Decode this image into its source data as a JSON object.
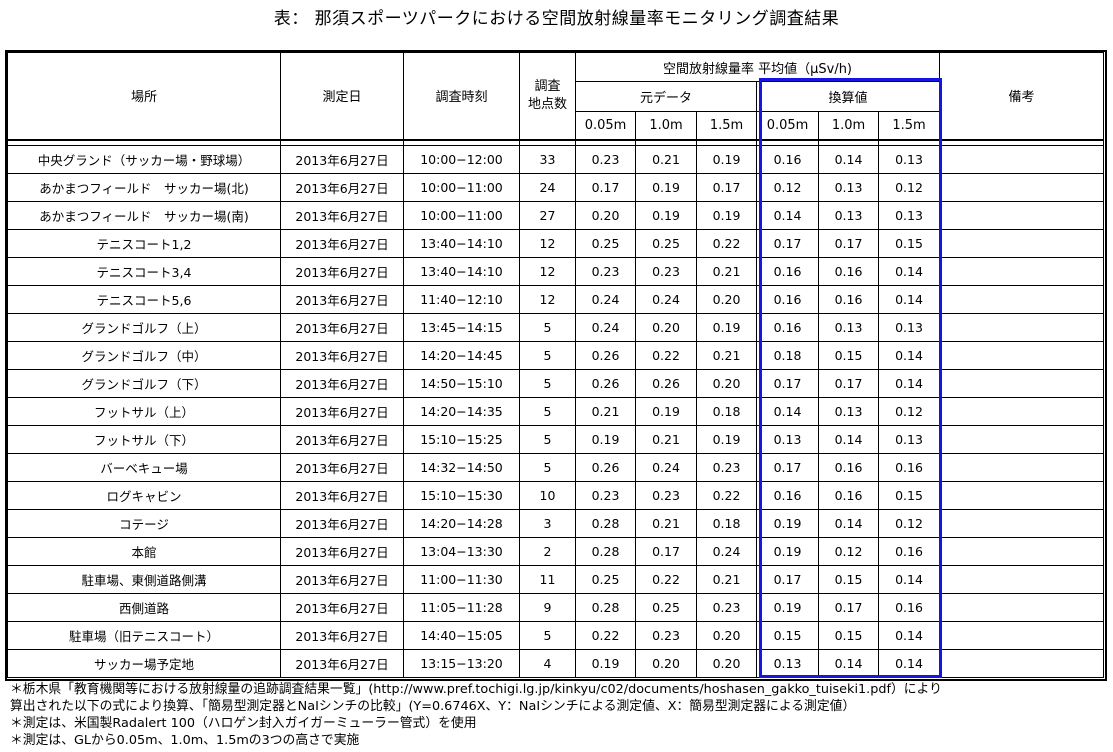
{
  "title": "表：  那須スポーツパークにおける空間放射線量率モニタリング調査結果",
  "headers": {
    "place": "場所",
    "date": "測定日",
    "time": "調査時刻",
    "points": "調査\n地点数",
    "dose_group": "空間放射線量率  平均値（μSv/h)",
    "raw": "元データ",
    "converted": "換算値",
    "h1": "0.05m",
    "h2": "1.0m",
    "h3": "1.5m",
    "remarks": "備考"
  },
  "rows": [
    {
      "place": "中央グランド（サッカー場・野球場）",
      "date": "2013年6月27日",
      "time": "10:00−12:00",
      "points": "33",
      "r1": "0.23",
      "r2": "0.21",
      "r3": "0.19",
      "c1": "0.16",
      "c2": "0.14",
      "c3": "0.13",
      "remarks": ""
    },
    {
      "place": "あかまつフィールド　サッカー場(北)",
      "date": "2013年6月27日",
      "time": "10:00−11:00",
      "points": "24",
      "r1": "0.17",
      "r2": "0.19",
      "r3": "0.17",
      "c1": "0.12",
      "c2": "0.13",
      "c3": "0.12",
      "remarks": ""
    },
    {
      "place": "あかまつフィールド　サッカー場(南)",
      "date": "2013年6月27日",
      "time": "10:00−11:00",
      "points": "27",
      "r1": "0.20",
      "r2": "0.19",
      "r3": "0.19",
      "c1": "0.14",
      "c2": "0.13",
      "c3": "0.13",
      "remarks": ""
    },
    {
      "place": "テニスコート1,2",
      "date": "2013年6月27日",
      "time": "13:40−14:10",
      "points": "12",
      "r1": "0.25",
      "r2": "0.25",
      "r3": "0.22",
      "c1": "0.17",
      "c2": "0.17",
      "c3": "0.15",
      "remarks": ""
    },
    {
      "place": "テニスコート3,4",
      "date": "2013年6月27日",
      "time": "13:40−14:10",
      "points": "12",
      "r1": "0.23",
      "r2": "0.23",
      "r3": "0.21",
      "c1": "0.16",
      "c2": "0.16",
      "c3": "0.14",
      "remarks": ""
    },
    {
      "place": "テニスコート5,6",
      "date": "2013年6月27日",
      "time": "11:40−12:10",
      "points": "12",
      "r1": "0.24",
      "r2": "0.24",
      "r3": "0.20",
      "c1": "0.16",
      "c2": "0.16",
      "c3": "0.14",
      "remarks": ""
    },
    {
      "place": "グランドゴルフ（上）",
      "date": "2013年6月27日",
      "time": "13:45−14:15",
      "points": "5",
      "r1": "0.24",
      "r2": "0.20",
      "r3": "0.19",
      "c1": "0.16",
      "c2": "0.13",
      "c3": "0.13",
      "remarks": ""
    },
    {
      "place": "グランドゴルフ（中）",
      "date": "2013年6月27日",
      "time": "14:20−14:45",
      "points": "5",
      "r1": "0.26",
      "r2": "0.22",
      "r3": "0.21",
      "c1": "0.18",
      "c2": "0.15",
      "c3": "0.14",
      "remarks": ""
    },
    {
      "place": "グランドゴルフ（下）",
      "date": "2013年6月27日",
      "time": "14:50−15:10",
      "points": "5",
      "r1": "0.26",
      "r2": "0.26",
      "r3": "0.20",
      "c1": "0.17",
      "c2": "0.17",
      "c3": "0.14",
      "remarks": ""
    },
    {
      "place": "フットサル（上）",
      "date": "2013年6月27日",
      "time": "14:20−14:35",
      "points": "5",
      "r1": "0.21",
      "r2": "0.19",
      "r3": "0.18",
      "c1": "0.14",
      "c2": "0.13",
      "c3": "0.12",
      "remarks": ""
    },
    {
      "place": "フットサル（下）",
      "date": "2013年6月27日",
      "time": "15:10−15:25",
      "points": "5",
      "r1": "0.19",
      "r2": "0.21",
      "r3": "0.19",
      "c1": "0.13",
      "c2": "0.14",
      "c3": "0.13",
      "remarks": ""
    },
    {
      "place": "バーベキュー場",
      "date": "2013年6月27日",
      "time": "14:32−14:50",
      "points": "5",
      "r1": "0.26",
      "r2": "0.24",
      "r3": "0.23",
      "c1": "0.17",
      "c2": "0.16",
      "c3": "0.16",
      "remarks": ""
    },
    {
      "place": "ログキャビン",
      "date": "2013年6月27日",
      "time": "15:10−15:30",
      "points": "10",
      "r1": "0.23",
      "r2": "0.23",
      "r3": "0.22",
      "c1": "0.16",
      "c2": "0.16",
      "c3": "0.15",
      "remarks": ""
    },
    {
      "place": "コテージ",
      "date": "2013年6月27日",
      "time": "14:20−14:28",
      "points": "3",
      "r1": "0.28",
      "r2": "0.21",
      "r3": "0.18",
      "c1": "0.19",
      "c2": "0.14",
      "c3": "0.12",
      "remarks": ""
    },
    {
      "place": "本館",
      "date": "2013年6月27日",
      "time": "13:04−13:30",
      "points": "2",
      "r1": "0.28",
      "r2": "0.17",
      "r3": "0.24",
      "c1": "0.19",
      "c2": "0.12",
      "c3": "0.16",
      "remarks": ""
    },
    {
      "place": "駐車場、東側道路側溝",
      "date": "2013年6月27日",
      "time": "11:00−11:30",
      "points": "11",
      "r1": "0.25",
      "r2": "0.22",
      "r3": "0.21",
      "c1": "0.17",
      "c2": "0.15",
      "c3": "0.14",
      "remarks": ""
    },
    {
      "place": "西側道路",
      "date": "2013年6月27日",
      "time": "11:05−11:28",
      "points": "9",
      "r1": "0.28",
      "r2": "0.25",
      "r3": "0.23",
      "c1": "0.19",
      "c2": "0.17",
      "c3": "0.16",
      "remarks": ""
    },
    {
      "place": "駐車場（旧テニスコート）",
      "date": "2013年6月27日",
      "time": "14:40−15:05",
      "points": "5",
      "r1": "0.22",
      "r2": "0.23",
      "r3": "0.20",
      "c1": "0.15",
      "c2": "0.15",
      "c3": "0.14",
      "remarks": ""
    },
    {
      "place": "サッカー場予定地",
      "date": "2013年6月27日",
      "time": "13:15−13:20",
      "points": "4",
      "r1": "0.19",
      "r2": "0.20",
      "r3": "0.20",
      "c1": "0.13",
      "c2": "0.14",
      "c3": "0.14",
      "remarks": ""
    }
  ],
  "notes": [
    "＊栃木県「教育機関等における放射線量の追跡調査結果一覧」(http://www.pref.tochigi.lg.jp/kinkyu/c02/documents/hoshasen_gakko_tuiseki1.pdf）により",
    "算出された以下の式により換算、「簡易型測定器とNaIシンチの比較」(Y=0.6746X、Y：NaIシンチによる測定値、X：簡易型測定器による測定値）",
    "＊測定は、米国製Radalert 100（ハロゲン封入ガイガーミューラー管式）を使用",
    "＊測定は、GLから0.05m、1.0m、1.5mの3つの高さで実施"
  ],
  "colors": {
    "highlight_box": "#1515e6",
    "grid": "#000000"
  }
}
